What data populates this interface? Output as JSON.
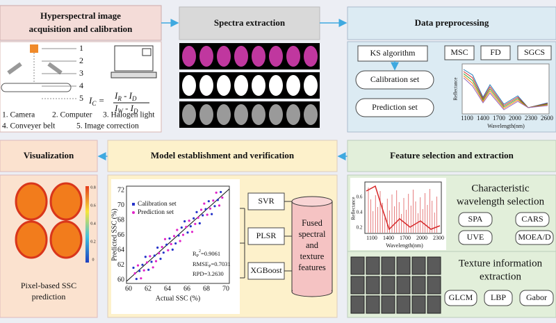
{
  "acquisition": {
    "title": [
      "Hyperspectral image",
      "acquisition and calibration"
    ],
    "numbers": [
      "1",
      "2",
      "3",
      "4",
      "5"
    ],
    "formula": {
      "lhs": [
        "I",
        "C",
        " ="
      ],
      "numerator": [
        "I",
        "R",
        " - I",
        "D"
      ],
      "denominator": [
        "I",
        "W",
        " - I",
        "D"
      ]
    },
    "legend": [
      "1. Camera",
      "2. Computer",
      "3. Halogen light",
      "4. Conveyer belt",
      "5. Image correction"
    ]
  },
  "spectra_extraction": {
    "title": "Spectra extraction"
  },
  "preprocessing": {
    "title": "Data preprocessing",
    "split": "KS algorithm",
    "sets": [
      "Calibration set",
      "Prediction set"
    ],
    "methods": [
      "MSC",
      "FD",
      "SGCS"
    ],
    "chart": {
      "ylabel": "Reflectance",
      "xlabel": "Wavelength(nm)",
      "xticks": [
        "1100",
        "1400",
        "1700",
        "2000",
        "2300",
        "2600"
      ]
    }
  },
  "visualization": {
    "title": "Visualization",
    "caption": [
      "Pixel-based SSC",
      "prediction"
    ],
    "colorbar": [
      "0.8",
      "0.6",
      "0.4",
      "0.2",
      "0"
    ]
  },
  "model": {
    "title": "Model establishment and verification",
    "scatter": {
      "ylabel": "Predicted SSC (%)",
      "xlabel": "Actual SSC (%)",
      "xticks": [
        "60",
        "62",
        "64",
        "66",
        "68",
        "70"
      ],
      "yticks": [
        "60",
        "62",
        "64",
        "66",
        "68",
        "70",
        "72"
      ],
      "legend": [
        "Calibration set",
        "Prediction set"
      ],
      "stats": {
        "r2": [
          "R",
          "P",
          "2",
          "=0.9061"
        ],
        "rmse": [
          "RMSE",
          "P",
          "=0.7031"
        ],
        "rpd": "RPD=3.2630"
      }
    },
    "models": [
      "SVR",
      "PLSR",
      "XGBoost"
    ],
    "features": [
      "Fused",
      "spectral",
      "and",
      "texture",
      "features"
    ]
  },
  "feature": {
    "title": "Feature selection and extraction",
    "wavelength_title": [
      "Characteristic",
      "wavelength selection"
    ],
    "wavelength_methods": [
      "SPA",
      "CARS",
      "UVE",
      "MOEA/D"
    ],
    "chart": {
      "ylabel": "Reflectance",
      "xlabel": "Wavelength(nm)",
      "xticks": [
        "1100",
        "1400",
        "1700",
        "2000",
        "2300"
      ],
      "yticks": [
        "0.2",
        "0.4",
        "0.6"
      ]
    },
    "texture_title": [
      "Texture information",
      "extraction"
    ],
    "texture_methods": [
      "GLCM",
      "LBP",
      "Gabor"
    ]
  }
}
